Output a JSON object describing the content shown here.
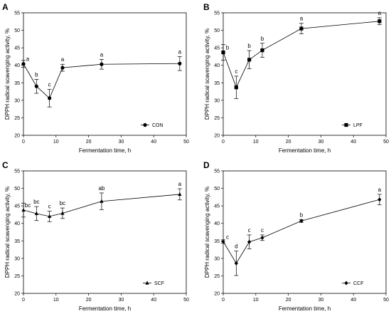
{
  "chart_data": [
    {
      "panel": "A",
      "type": "line",
      "legend": "CON",
      "marker": "circle",
      "x": [
        0,
        4,
        8,
        12,
        24,
        48
      ],
      "y": [
        40.4,
        34.0,
        30.6,
        39.3,
        40.3,
        40.5
      ],
      "error": [
        1.0,
        2.0,
        2.5,
        1.0,
        1.4,
        2.0
      ],
      "labels": [
        "a",
        "b",
        "c",
        "a",
        "a",
        "a"
      ]
    },
    {
      "panel": "B",
      "type": "line",
      "legend": "LPF",
      "marker": "square",
      "x": [
        0,
        4,
        8,
        12,
        24,
        48
      ],
      "y": [
        43.7,
        33.7,
        41.6,
        44.3,
        50.5,
        52.6
      ],
      "error": [
        2.2,
        3.2,
        2.6,
        2.0,
        1.5,
        1.0
      ],
      "labels": [
        "b",
        "c",
        "b",
        "b",
        "a",
        "a"
      ]
    },
    {
      "panel": "C",
      "type": "line",
      "legend": "SCF",
      "marker": "triangle",
      "x": [
        0,
        4,
        8,
        12,
        24,
        48
      ],
      "y": [
        43.8,
        42.8,
        42.0,
        42.9,
        46.3,
        48.3
      ],
      "error": [
        2.0,
        2.0,
        1.5,
        1.5,
        2.4,
        1.6
      ],
      "labels": [
        "bc",
        "bc",
        "c",
        "bc",
        "ab",
        "a"
      ]
    },
    {
      "panel": "D",
      "type": "line",
      "legend": "CCF",
      "marker": "diamond",
      "x": [
        0,
        4,
        8,
        12,
        24,
        48
      ],
      "y": [
        34.8,
        28.6,
        34.7,
        35.9,
        40.7,
        46.8
      ],
      "error": [
        0.5,
        3.5,
        2.0,
        0.8,
        0.4,
        1.5
      ],
      "labels": [
        "c",
        "d",
        "c",
        "c",
        "b",
        "a"
      ]
    }
  ],
  "axes": {
    "xlabel": "Fermentation time, h",
    "ylabel": "DPPH radical scavenging activity, %",
    "xlim": [
      0,
      50
    ],
    "ylim": [
      20,
      55
    ],
    "xticks": [
      "0",
      "10",
      "20",
      "30",
      "40",
      "50"
    ],
    "yticks": [
      "20",
      "25",
      "30",
      "35",
      "40",
      "45",
      "50",
      "55"
    ]
  }
}
